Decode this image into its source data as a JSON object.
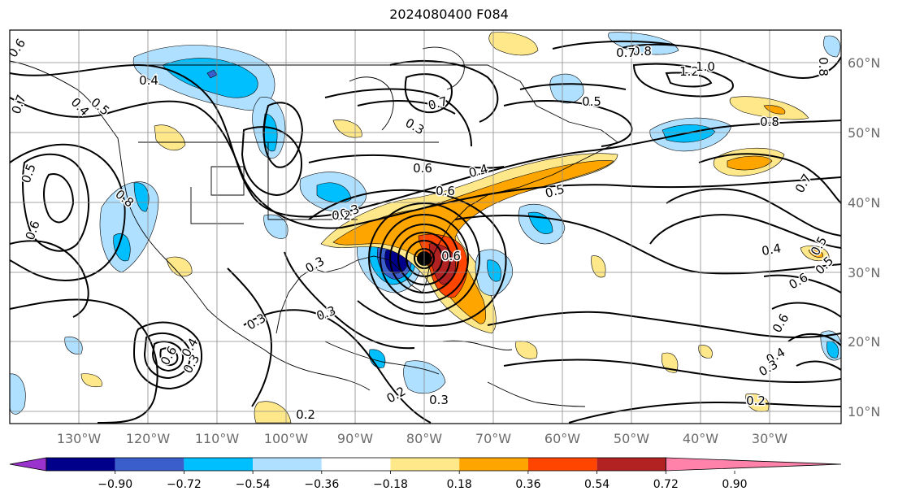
{
  "title": "2024080400 F084",
  "longitude_labels": [
    "130°W",
    "120°W",
    "110°W",
    "100°W",
    "90°W",
    "80°W",
    "70°W",
    "60°W",
    "50°W",
    "40°W",
    "30°W"
  ],
  "latitude_labels": [
    "60°N",
    "50°N",
    "40°N",
    "30°N",
    "20°N",
    "10°N"
  ],
  "colorbar": {
    "tick_labels": [
      "−0.90",
      "−0.72",
      "−0.54",
      "−0.36",
      "−0.18",
      "0.18",
      "0.36",
      "0.54",
      "0.72",
      "0.90"
    ],
    "colors": [
      "#9a32cd",
      "#00008b",
      "#3a5fcd",
      "#00bfff",
      "#b0e0ff",
      "#ffffff",
      "#ffe88a",
      "#ffa500",
      "#ff4500",
      "#b22222",
      "#ff82ab"
    ]
  },
  "contour_labels": [
    "0.6",
    "0.4",
    "0.7",
    "0.4",
    "0.5",
    "0.8",
    "0.6",
    "0.3",
    "0.6",
    "0.3",
    "0.7",
    "0.5",
    "0.4",
    "0.6",
    "0.5",
    "0.8",
    "0.7",
    "0.4",
    "0.5",
    "0.6",
    "0.3",
    "0.3",
    "0.2",
    "0.3",
    "0.6",
    "0.3",
    "0.4",
    "0.3",
    "0.2",
    "0.5",
    "0.6",
    "0.4",
    "0.3",
    "0.2",
    "0.8",
    "1.2",
    "1.0",
    "0.7",
    "0.5",
    "0.6",
    "0.8",
    "0.2"
  ]
}
